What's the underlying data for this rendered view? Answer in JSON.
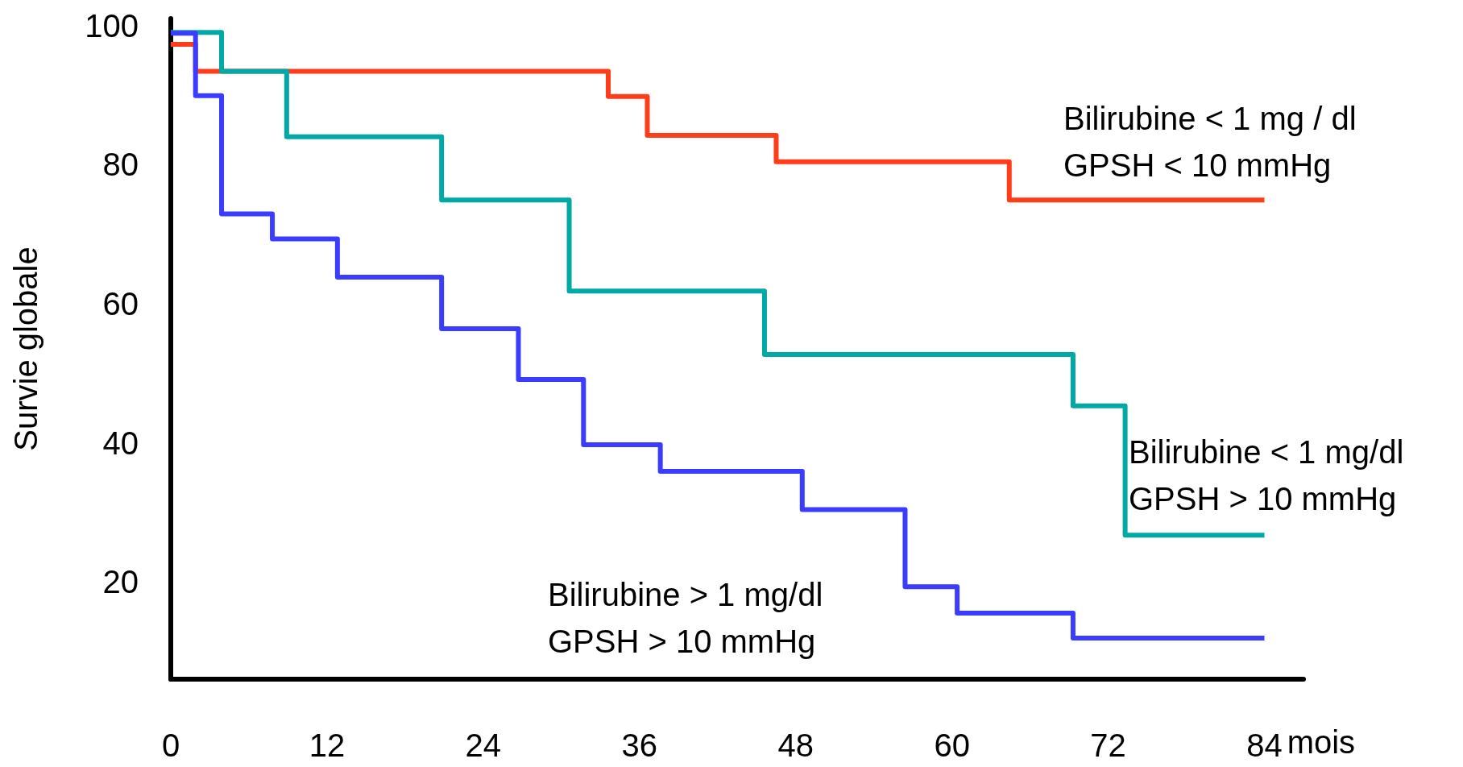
{
  "chart_data": {
    "type": "step",
    "ylabel": "Survie globale",
    "xlabel": "mois",
    "xlim": [
      0,
      87
    ],
    "xticks": [
      0,
      12,
      24,
      36,
      48,
      60,
      72,
      84
    ],
    "ylim": [
      6,
      101
    ],
    "yticks": [
      20,
      40,
      60,
      80,
      100
    ],
    "grid": false,
    "marker": "none",
    "line_style": "solid",
    "series": [
      {
        "color": "#ff3d1a",
        "x": [
          0,
          1.9,
          33.6,
          36.6,
          46.5,
          64.4,
          84
        ],
        "values": [
          97.3,
          93.4,
          89.8,
          84.2,
          80.4,
          74.9,
          74.9
        ]
      },
      {
        "color": "#00a9a5",
        "x": [
          0,
          3.9,
          8.9,
          20.8,
          30.6,
          45.6,
          69.3,
          73.3,
          84
        ],
        "values": [
          99,
          93.4,
          84,
          74.9,
          61.8,
          52.7,
          45.3,
          26.7,
          26.7
        ]
      },
      {
        "color": "#3a3cff",
        "x": [
          0,
          1.9,
          3.9,
          7.8,
          12.8,
          20.8,
          26.7,
          31.7,
          37.6,
          48.5,
          56.4,
          60.4,
          69.3,
          84
        ],
        "values": [
          98.9,
          89.9,
          72.9,
          69.3,
          63.8,
          56.4,
          49.1,
          39.7,
          35.9,
          30.4,
          19.3,
          15.5,
          11.9,
          11.9
        ]
      }
    ],
    "annotations": [
      "Bilirubine < 1 mg / dl\nGPSH < 10 mmHg",
      "Bilirubine < 1 mg/dl\nGPSH > 10 mmHg",
      "Bilirubine > 1 mg/dl\nGPSH > 10 mmHg"
    ]
  }
}
